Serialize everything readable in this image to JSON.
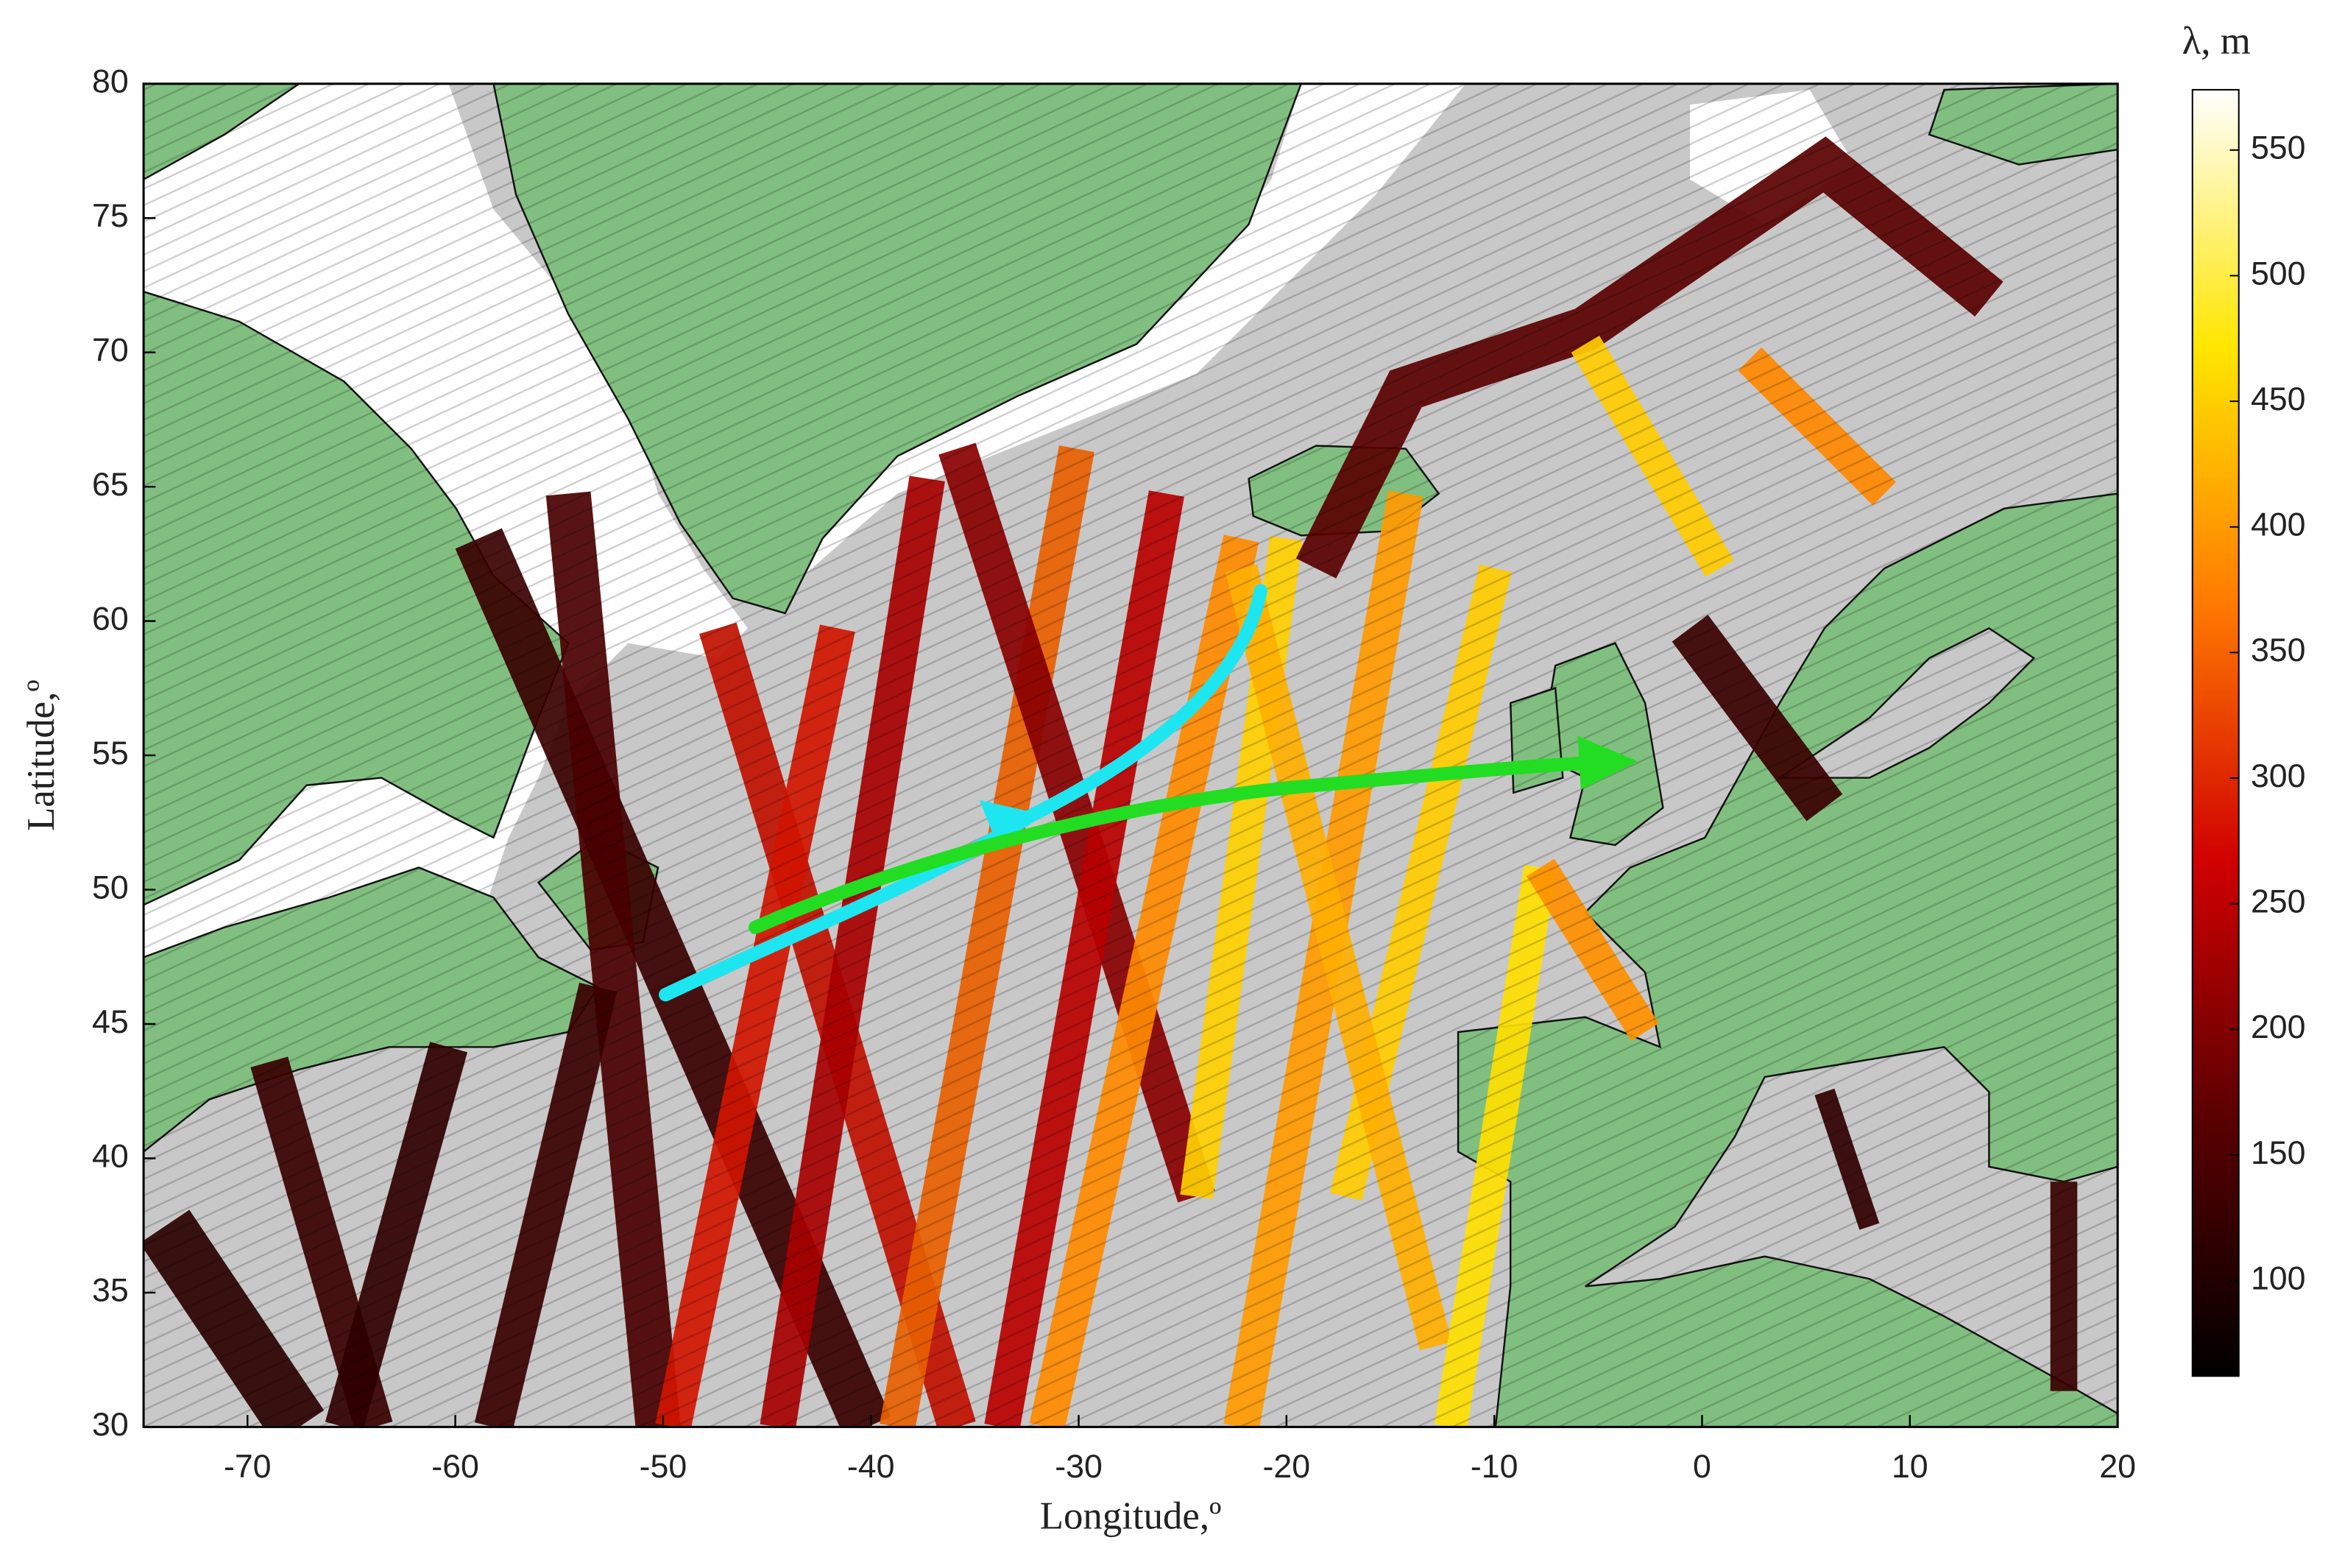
{
  "chart_data": {
    "type": "map",
    "xlabel": "Longitude,º",
    "ylabel": "Latitude,º",
    "xlim": [
      -75,
      20
    ],
    "ylim": [
      30,
      80
    ],
    "xticks": [
      -70,
      -60,
      -50,
      -40,
      -30,
      -20,
      -10,
      0,
      10,
      20
    ],
    "yticks": [
      30,
      35,
      40,
      45,
      50,
      55,
      60,
      65,
      70,
      75,
      80
    ],
    "colorbar": {
      "label": "λ, m",
      "lim": [
        62,
        574
      ],
      "ticks": [
        100,
        150,
        200,
        250,
        300,
        350,
        400,
        450,
        500,
        550
      ]
    }
  }
}
